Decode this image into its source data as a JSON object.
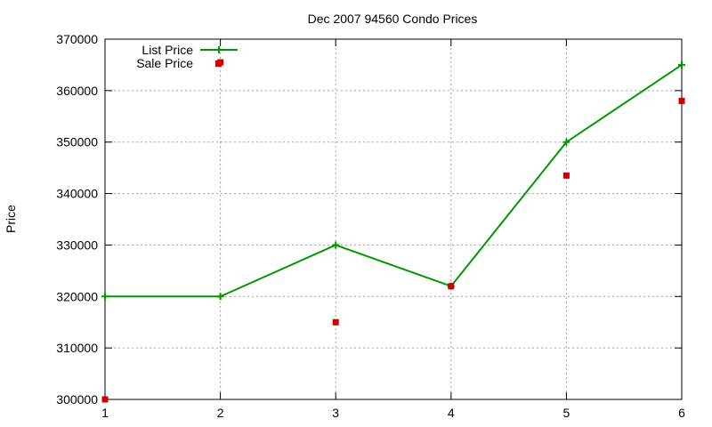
{
  "chart_data": {
    "type": "line",
    "title": "Dec 2007 94560 Condo Prices",
    "xlabel": "",
    "ylabel": "Price",
    "x": [
      1,
      2,
      3,
      4,
      5,
      6
    ],
    "xlim": [
      1,
      6
    ],
    "ylim": [
      300000,
      370000
    ],
    "xticks": [
      "1",
      "2",
      "3",
      "4",
      "5",
      "6"
    ],
    "yticks": [
      "300000",
      "310000",
      "320000",
      "330000",
      "340000",
      "350000",
      "360000",
      "370000"
    ],
    "grid": true,
    "legend_position": "top-left",
    "series": [
      {
        "name": "List Price",
        "style": "lines+points",
        "marker": "plus",
        "color": "#009900",
        "values": [
          320000,
          320000,
          330000,
          322000,
          350000,
          365000
        ]
      },
      {
        "name": "Sale Price",
        "style": "points",
        "marker": "square",
        "color": "#cc0000",
        "values": [
          300000,
          365500,
          315000,
          322000,
          343500,
          358000
        ]
      }
    ]
  }
}
